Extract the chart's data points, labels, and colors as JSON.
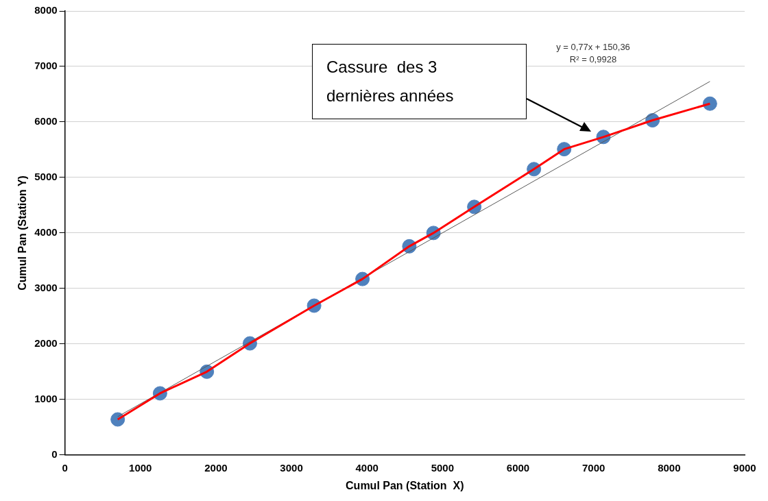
{
  "chart_data": {
    "type": "scatter",
    "xlabel": "Cumul Pan (Station  X)",
    "ylabel": "Cumul Pan (Station Y)",
    "x": [
      700,
      1260,
      1880,
      2450,
      3300,
      3940,
      4560,
      4880,
      5420,
      6210,
      6610,
      7130,
      7780,
      8540
    ],
    "series": [
      {
        "type": "line",
        "color": "#ff0000",
        "marker": "none",
        "values": [
          640,
          1110,
          1500,
          2010,
          2690,
          3170,
          3760,
          4000,
          4470,
          5150,
          5510,
          5730,
          6030,
          6330
        ]
      },
      {
        "color": "#4f81bd",
        "marker": "circle",
        "values": [
          640,
          1110,
          1500,
          2010,
          2690,
          3170,
          3760,
          4000,
          4470,
          5150,
          5510,
          5730,
          6030,
          6330
        ]
      },
      {
        "type": "line",
        "color": "#595959",
        "marker": "none",
        "x": [
          700,
          8540
        ],
        "values": [
          690,
          6730
        ]
      }
    ],
    "xlim": [
      0,
      9000
    ],
    "xticks": [
      0,
      1000,
      2000,
      3000,
      4000,
      5000,
      6000,
      7000,
      8000,
      9000
    ],
    "ylim": [
      0,
      8000
    ],
    "yticks": [
      0,
      1000,
      2000,
      3000,
      4000,
      5000,
      6000,
      7000,
      8000
    ],
    "grid": "y",
    "legend": false,
    "annotations": [
      "Cassure  des 3\ndernières années",
      "y = 0,77x + 150,36\nR² = 0,9928"
    ]
  }
}
